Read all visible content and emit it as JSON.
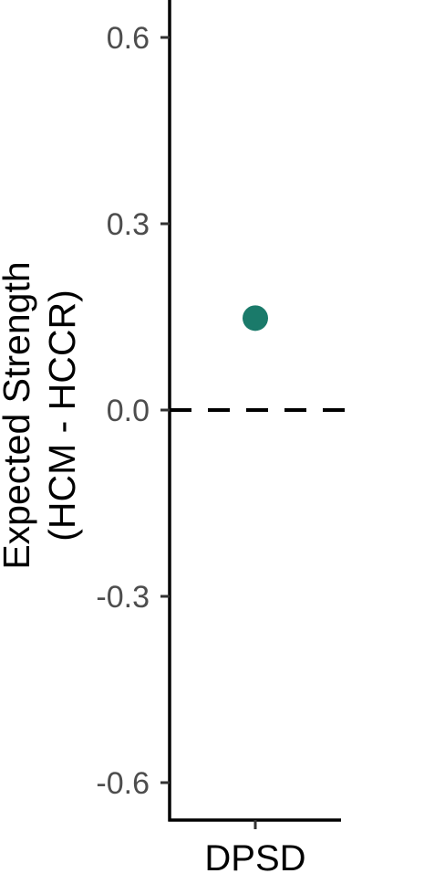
{
  "chart_data": {
    "type": "scatter",
    "title": "",
    "ylabel_lines": [
      "Expected Strength",
      "(HCM - HCCR)"
    ],
    "xlabel": "",
    "categories": [
      "DPSD"
    ],
    "series": [
      {
        "values": [
          0.148
        ],
        "color": "#1a7a6a"
      }
    ],
    "ylim": [
      -0.66,
      0.66
    ],
    "yticks": [
      -0.6,
      -0.3,
      0.0,
      0.3,
      0.6
    ],
    "ytick_labels": [
      "-0.6",
      "-0.3",
      "0.0",
      "0.3",
      "0.6"
    ],
    "reference_line": {
      "y": 0.0,
      "style": "dashed"
    },
    "grid": false,
    "legend": "none"
  }
}
